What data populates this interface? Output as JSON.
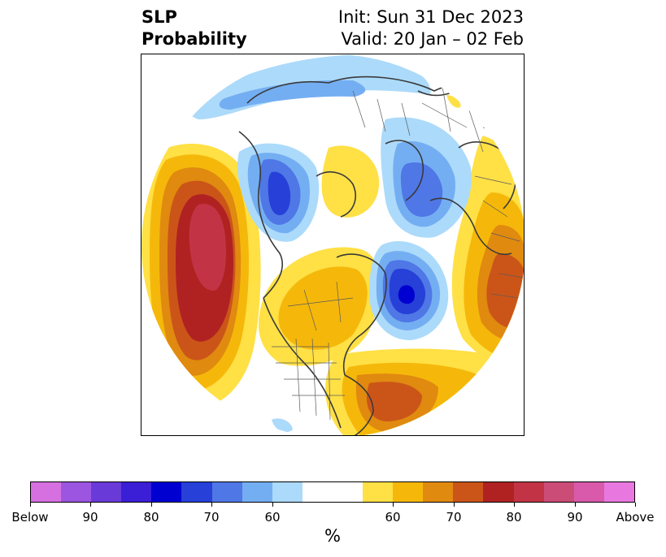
{
  "title": {
    "left_line1": "SLP",
    "left_line2": "Probability",
    "right_line1": "Init: Sun 31 Dec 2023",
    "right_line2": "Valid: 20 Jan – 02 Feb"
  },
  "colorbar": {
    "unit": "%",
    "colors": [
      "#d670e0",
      "#9b55e0",
      "#6a3ad9",
      "#3a1fd6",
      "#0000d0",
      "#2640d8",
      "#4f77e6",
      "#74aef2",
      "#acdafa",
      "#ffffff",
      "#ffffff",
      "#ffe045",
      "#f5b80a",
      "#e08a10",
      "#cb5518",
      "#b02222",
      "#c23445",
      "#cc4c78",
      "#d95aaa",
      "#e878e0"
    ],
    "tick_labels": [
      "Below",
      "90",
      "80",
      "70",
      "60",
      "60",
      "70",
      "80",
      "90",
      "Above"
    ]
  },
  "map": {
    "projection": "north-polar-stereographic",
    "anomalies": [
      {
        "kind": "above",
        "region": "North Pacific / Gulf of Alaska",
        "max_level": "80-90"
      },
      {
        "kind": "above",
        "region": "Northern Europe / Scandinavia",
        "max_level": "70-80"
      },
      {
        "kind": "above",
        "region": "Western Atlantic off US East Coast",
        "max_level": "70-75"
      },
      {
        "kind": "above",
        "region": "Canada / Central North America",
        "max_level": "60-65"
      },
      {
        "kind": "above",
        "region": "Arctic Canada / Siberian Arctic",
        "max_level": "60-65"
      },
      {
        "kind": "below",
        "region": "Greenland / Iceland",
        "max_level": "80-90"
      },
      {
        "kind": "below",
        "region": "Eastern Siberia",
        "max_level": "70-75"
      },
      {
        "kind": "below",
        "region": "Western Russia / Barents",
        "max_level": "65-70"
      }
    ]
  }
}
